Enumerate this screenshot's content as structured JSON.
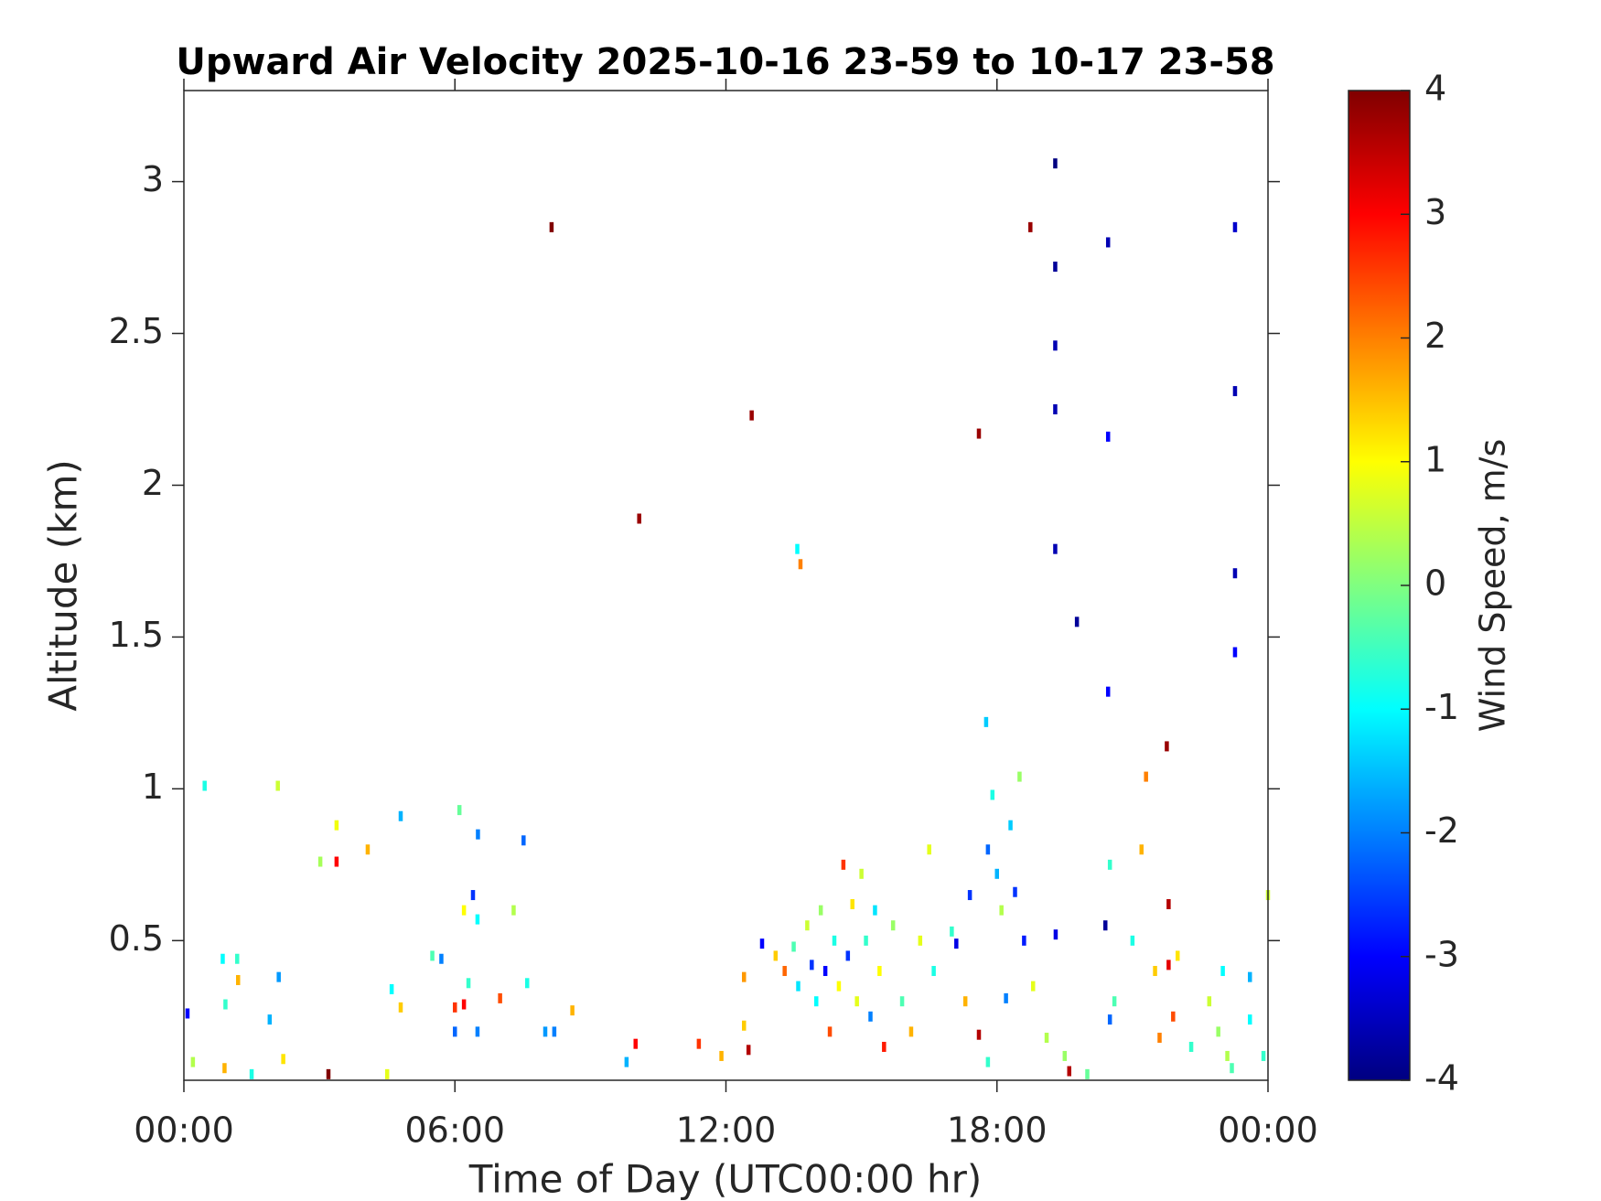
{
  "chart_data": {
    "type": "heatmap",
    "title": "Upward Air Velocity 2025-10-16 23-59 to 10-17 23-58",
    "x_label": "Time of Day (UTC00:00 hr)",
    "y_label": "Altitude (km)",
    "colorbar_label": "Wind Speed, m/s",
    "colormap": "jet",
    "xlim": [
      0,
      24
    ],
    "xticks": [
      {
        "value": 0,
        "label": "00:00"
      },
      {
        "value": 6,
        "label": "06:00"
      },
      {
        "value": 12,
        "label": "12:00"
      },
      {
        "value": 18,
        "label": "18:00"
      },
      {
        "value": 24,
        "label": "00:00"
      }
    ],
    "ylim": [
      0.04,
      3.3
    ],
    "yticks": [
      0.5,
      1,
      1.5,
      2,
      2.5,
      3
    ],
    "clim": [
      -4,
      4
    ],
    "cticks": [
      -4,
      -3,
      -2,
      -1,
      0,
      1,
      2,
      3,
      4
    ],
    "x": [
      8.14,
      12.57,
      10.08,
      17.6,
      18.74,
      19.29,
      19.29,
      19.29,
      19.29,
      19.29,
      20.46,
      20.46,
      19.77,
      20.46,
      23.27,
      23.27,
      23.27,
      23.27,
      21.76,
      21.3,
      13.58,
      13.65,
      17.76,
      0.46,
      2.08,
      3.38,
      3.38,
      3.02,
      4.8,
      6.1,
      6.51,
      7.52,
      4.07,
      0.08,
      0.86,
      1.18,
      2.1,
      1.9,
      1.2,
      0.92,
      4.6,
      4.8,
      5.5,
      5.7,
      6.0,
      6.2,
      6.3,
      6.5,
      6.2,
      6.4,
      7.3,
      7.6,
      7.0,
      6.0,
      6.5,
      8.0,
      8.2,
      8.6,
      10.0,
      9.8,
      11.4,
      11.9,
      12.5,
      12.4,
      12.4,
      12.8,
      13.1,
      13.3,
      13.5,
      13.6,
      13.8,
      13.9,
      14.0,
      14.1,
      14.2,
      14.3,
      14.4,
      14.5,
      14.6,
      14.7,
      14.8,
      14.9,
      15.0,
      15.1,
      15.2,
      15.3,
      15.4,
      15.5,
      15.7,
      15.9,
      16.1,
      16.3,
      16.5,
      16.6,
      17.0,
      17.1,
      17.3,
      17.4,
      17.6,
      17.8,
      17.8,
      17.9,
      18.0,
      18.1,
      18.2,
      18.3,
      18.4,
      18.5,
      18.6,
      18.8,
      19.1,
      19.3,
      19.5,
      19.6,
      20.0,
      20.4,
      20.5,
      20.6,
      20.5,
      21.0,
      21.2,
      21.5,
      21.6,
      21.8,
      21.8,
      21.9,
      22.0,
      22.3,
      22.7,
      22.9,
      23.0,
      23.1,
      23.2,
      23.6,
      23.6,
      23.9,
      24.0,
      1.5,
      3.2,
      4.5,
      0.2,
      2.2,
      0.9
    ],
    "y": [
      2.85,
      2.23,
      1.89,
      2.17,
      2.85,
      3.06,
      2.72,
      2.46,
      2.25,
      1.79,
      2.8,
      2.16,
      1.55,
      1.32,
      2.85,
      2.31,
      1.71,
      1.45,
      1.14,
      1.04,
      1.79,
      1.74,
      1.22,
      1.01,
      1.01,
      0.88,
      0.76,
      0.76,
      0.91,
      0.93,
      0.85,
      0.83,
      0.8,
      0.26,
      0.44,
      0.44,
      0.38,
      0.24,
      0.37,
      0.29,
      0.34,
      0.28,
      0.45,
      0.44,
      0.28,
      0.29,
      0.36,
      0.57,
      0.6,
      0.65,
      0.6,
      0.36,
      0.31,
      0.2,
      0.2,
      0.2,
      0.2,
      0.27,
      0.16,
      0.1,
      0.16,
      0.12,
      0.14,
      0.22,
      0.38,
      0.49,
      0.45,
      0.4,
      0.48,
      0.35,
      0.55,
      0.42,
      0.3,
      0.6,
      0.4,
      0.2,
      0.5,
      0.35,
      0.75,
      0.45,
      0.62,
      0.3,
      0.72,
      0.5,
      0.25,
      0.6,
      0.4,
      0.15,
      0.55,
      0.3,
      0.2,
      0.5,
      0.8,
      0.4,
      0.53,
      0.49,
      0.3,
      0.65,
      0.19,
      0.1,
      0.8,
      0.98,
      0.72,
      0.6,
      0.31,
      0.88,
      0.66,
      1.04,
      0.5,
      0.35,
      0.18,
      0.52,
      0.12,
      0.07,
      0.06,
      0.55,
      0.75,
      0.3,
      0.24,
      0.5,
      0.8,
      0.4,
      0.18,
      0.62,
      0.42,
      0.25,
      0.45,
      0.15,
      0.3,
      0.2,
      0.4,
      0.12,
      0.08,
      0.38,
      0.24,
      0.12,
      0.65,
      0.06,
      0.06,
      0.06,
      0.1,
      0.11,
      0.08
    ],
    "values": [
      4,
      3.8,
      3.8,
      3.8,
      3.8,
      -4,
      -3.8,
      -3.6,
      -3.6,
      -3.6,
      -3.6,
      -3,
      -3.8,
      -3,
      -3.4,
      -3.6,
      -3.6,
      -3,
      3.8,
      2,
      -1,
      2,
      -1.4,
      -0.8,
      0.6,
      0.9,
      3,
      0.3,
      -1.6,
      -0.2,
      -2,
      -2.2,
      1.6,
      -3,
      -1,
      -0.6,
      -1.8,
      -1.6,
      1.6,
      -0.6,
      -1,
      1.4,
      -0.4,
      -2,
      2.6,
      3,
      -0.6,
      -1,
      1,
      -2.6,
      0.4,
      -0.8,
      2.4,
      -2.2,
      -2,
      -1.8,
      -2,
      1.6,
      3,
      -1.6,
      2.6,
      1.6,
      3.6,
      1.4,
      1.8,
      -3,
      1.4,
      2.2,
      -0.4,
      -1.2,
      0.6,
      -2.6,
      -1,
      0.2,
      -3,
      2.4,
      -0.8,
      1,
      2.6,
      -2.6,
      1.2,
      0.8,
      0.6,
      -0.6,
      -2,
      -1.2,
      1,
      2.8,
      0.2,
      -0.4,
      1.6,
      0.8,
      0.8,
      -0.8,
      -0.6,
      -3.2,
      1.6,
      -2.6,
      3.6,
      -0.6,
      -2.2,
      -0.8,
      -1.6,
      0.4,
      -2,
      -1.4,
      -2.6,
      0.2,
      -2.8,
      0.8,
      0.4,
      -3.2,
      0.2,
      3.6,
      -0.2,
      -3.8,
      -0.6,
      -0.4,
      -2.2,
      -0.8,
      1.6,
      1.4,
      2,
      3.6,
      3.2,
      2.4,
      1.2,
      -0.6,
      0.6,
      0.2,
      -1,
      0.4,
      -0.4,
      -1.6,
      -1,
      -0.6,
      0.6,
      -0.8,
      4,
      0.8,
      0.4,
      1.2,
      1.6
    ]
  }
}
